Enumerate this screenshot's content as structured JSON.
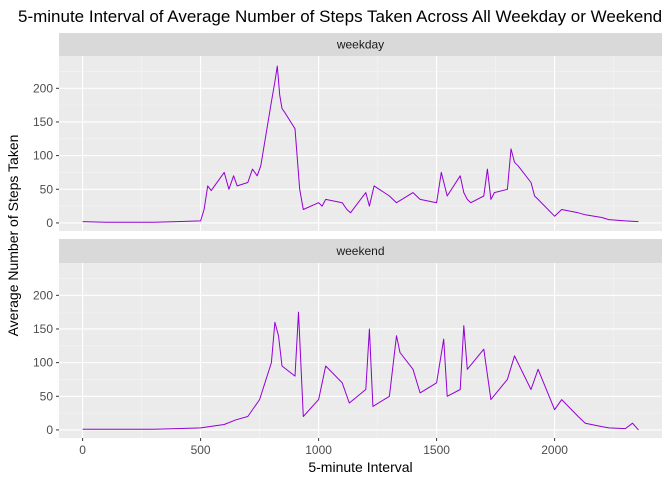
{
  "chart_data": {
    "type": "line",
    "title": "5-minute Interval of Average Number of Steps Taken Across All Weekday or Weekend",
    "xlabel": "5-minute Interval",
    "ylabel": "Average Number of Steps Taken",
    "xlim": [
      -100,
      2455
    ],
    "ylim": [
      -12,
      248
    ],
    "x_ticks": [
      0,
      500,
      1000,
      1500,
      2000
    ],
    "y_ticks": [
      0,
      50,
      100,
      150,
      200
    ],
    "grid": true,
    "legend": "none",
    "line_color": "#9400d3",
    "panels": [
      {
        "strip": "weekday",
        "series": {
          "x": [
            0,
            100,
            200,
            300,
            400,
            500,
            515,
            530,
            545,
            600,
            620,
            640,
            655,
            700,
            720,
            740,
            755,
            800,
            815,
            825,
            835,
            845,
            855,
            900,
            920,
            935,
            1000,
            1015,
            1030,
            1100,
            1120,
            1135,
            1200,
            1215,
            1235,
            1300,
            1330,
            1400,
            1430,
            1500,
            1520,
            1545,
            1600,
            1615,
            1630,
            1645,
            1700,
            1715,
            1730,
            1745,
            1800,
            1815,
            1830,
            1845,
            1900,
            1915,
            1930,
            2000,
            2030,
            2100,
            2130,
            2200,
            2230,
            2300,
            2355
          ],
          "y": [
            2,
            1,
            1,
            1,
            2,
            3,
            20,
            55,
            48,
            75,
            50,
            70,
            55,
            60,
            80,
            70,
            85,
            180,
            210,
            233,
            190,
            170,
            165,
            140,
            50,
            20,
            30,
            25,
            35,
            30,
            20,
            15,
            45,
            25,
            55,
            40,
            30,
            45,
            35,
            30,
            75,
            40,
            70,
            45,
            35,
            30,
            40,
            80,
            35,
            45,
            50,
            110,
            90,
            85,
            60,
            40,
            35,
            10,
            20,
            15,
            12,
            8,
            5,
            3,
            2
          ]
        }
      },
      {
        "strip": "weekend",
        "series": {
          "x": [
            0,
            100,
            200,
            300,
            400,
            500,
            600,
            650,
            700,
            750,
            800,
            815,
            830,
            845,
            900,
            915,
            935,
            1000,
            1030,
            1100,
            1130,
            1200,
            1215,
            1230,
            1300,
            1330,
            1345,
            1400,
            1430,
            1500,
            1530,
            1545,
            1600,
            1615,
            1630,
            1700,
            1730,
            1800,
            1830,
            1900,
            1930,
            2000,
            2030,
            2100,
            2130,
            2200,
            2230,
            2300,
            2330,
            2355
          ],
          "y": [
            1,
            1,
            1,
            1,
            2,
            3,
            8,
            15,
            20,
            45,
            100,
            160,
            140,
            95,
            80,
            175,
            20,
            45,
            95,
            70,
            40,
            60,
            150,
            35,
            50,
            140,
            115,
            90,
            55,
            70,
            135,
            50,
            60,
            155,
            90,
            120,
            45,
            75,
            110,
            60,
            90,
            30,
            45,
            20,
            10,
            5,
            3,
            2,
            10,
            0
          ]
        }
      }
    ]
  }
}
